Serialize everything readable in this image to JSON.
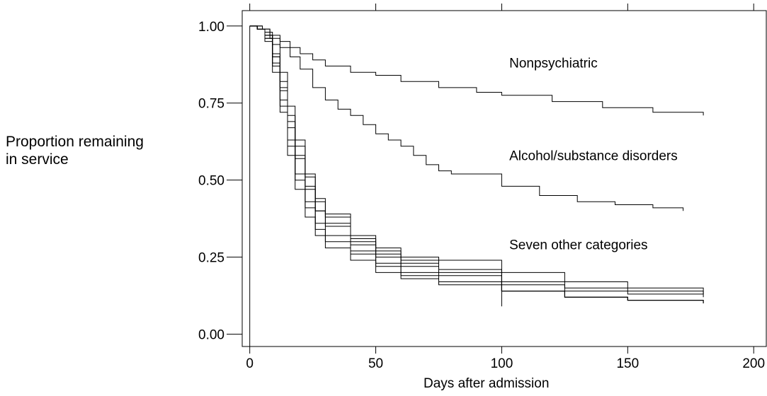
{
  "chart_data": {
    "type": "line",
    "xlabel": "Days after admission",
    "ylabel_line1": "Proportion remaining",
    "ylabel_line2": "in service",
    "xlim": [
      -3,
      205
    ],
    "ylim": [
      -0.04,
      1.05
    ],
    "xticks": [
      "0",
      "50",
      "100",
      "150",
      "200"
    ],
    "yticks": [
      "0.00",
      "0.25",
      "0.50",
      "0.75",
      "1.00"
    ],
    "xtick_values": [
      0,
      50,
      100,
      150,
      200
    ],
    "ytick_values": [
      0,
      0.25,
      0.5,
      0.75,
      1.0
    ],
    "grid": false,
    "annotations": [
      {
        "text": "Nonpsychiatric",
        "x": 103,
        "y": 0.865
      },
      {
        "text": "Alcohol/substance disorders",
        "x": 103,
        "y": 0.565
      },
      {
        "text": "Seven other categories",
        "x": 103,
        "y": 0.275
      }
    ],
    "series": [
      {
        "x": [
          0,
          5,
          8,
          12,
          16,
          20,
          25,
          30,
          40,
          50,
          60,
          75,
          90,
          100,
          120,
          140,
          160,
          180
        ],
        "y": [
          1.0,
          0.99,
          0.97,
          0.95,
          0.93,
          0.91,
          0.89,
          0.87,
          0.85,
          0.84,
          0.82,
          0.8,
          0.785,
          0.775,
          0.755,
          0.735,
          0.72,
          0.71
        ]
      },
      {
        "x": [
          0,
          5,
          8,
          12,
          16,
          20,
          25,
          30,
          35,
          40,
          45,
          50,
          55,
          60,
          65,
          70,
          75,
          80,
          100,
          115,
          130,
          145,
          160,
          172
        ],
        "y": [
          1.0,
          0.99,
          0.96,
          0.93,
          0.9,
          0.86,
          0.8,
          0.76,
          0.73,
          0.71,
          0.68,
          0.65,
          0.63,
          0.61,
          0.58,
          0.55,
          0.53,
          0.52,
          0.48,
          0.45,
          0.43,
          0.42,
          0.41,
          0.4
        ]
      },
      {
        "x": [
          0,
          3,
          6,
          9,
          12,
          15,
          18,
          22,
          26,
          30,
          40,
          50,
          60,
          75,
          100,
          125,
          150,
          180
        ],
        "y": [
          1.0,
          0.99,
          0.95,
          0.85,
          0.72,
          0.58,
          0.47,
          0.38,
          0.32,
          0.28,
          0.24,
          0.2,
          0.18,
          0.16,
          0.14,
          0.12,
          0.11,
          0.1
        ]
      },
      {
        "x": [
          0,
          3,
          6,
          9,
          12,
          15,
          18,
          22,
          26,
          30,
          40,
          50,
          60,
          75,
          100,
          125,
          150,
          180
        ],
        "y": [
          1.0,
          0.99,
          0.96,
          0.88,
          0.76,
          0.63,
          0.52,
          0.43,
          0.36,
          0.32,
          0.27,
          0.23,
          0.2,
          0.17,
          0.14,
          0.12,
          0.11,
          0.1
        ]
      },
      {
        "x": [
          0,
          3,
          6,
          9,
          12,
          15,
          18,
          22,
          26,
          30,
          40,
          50,
          60,
          75,
          100,
          125,
          150,
          180
        ],
        "y": [
          1.0,
          0.99,
          0.97,
          0.9,
          0.8,
          0.69,
          0.58,
          0.48,
          0.4,
          0.36,
          0.3,
          0.26,
          0.22,
          0.19,
          0.16,
          0.14,
          0.13,
          0.12
        ]
      },
      {
        "x": [
          0,
          3,
          6,
          9,
          12,
          15,
          18,
          22,
          26,
          30,
          40,
          50,
          60,
          75,
          100,
          125,
          150,
          180
        ],
        "y": [
          1.0,
          0.99,
          0.97,
          0.91,
          0.82,
          0.71,
          0.61,
          0.51,
          0.43,
          0.38,
          0.31,
          0.27,
          0.24,
          0.2,
          0.17,
          0.15,
          0.14,
          0.13
        ]
      },
      {
        "x": [
          0,
          3,
          6,
          9,
          12,
          15,
          18,
          22,
          26,
          30,
          40,
          50,
          60,
          75,
          100
        ],
        "y": [
          1.0,
          0.99,
          0.97,
          0.9,
          0.79,
          0.67,
          0.57,
          0.47,
          0.4,
          0.35,
          0.29,
          0.25,
          0.23,
          0.21,
          0.09
        ]
      },
      {
        "x": [
          0,
          3,
          6,
          9,
          12,
          15,
          18,
          22,
          26,
          30,
          40,
          50,
          60,
          75,
          100,
          125,
          150,
          180
        ],
        "y": [
          1.0,
          0.99,
          0.98,
          0.94,
          0.85,
          0.74,
          0.63,
          0.52,
          0.44,
          0.39,
          0.32,
          0.28,
          0.25,
          0.24,
          0.2,
          0.17,
          0.15,
          0.13
        ]
      },
      {
        "x": [
          0,
          3,
          6,
          9,
          12,
          15,
          18,
          22,
          26,
          30,
          40,
          50,
          60,
          75,
          100,
          125,
          150,
          180
        ],
        "y": [
          1.0,
          0.99,
          0.96,
          0.87,
          0.74,
          0.61,
          0.5,
          0.41,
          0.34,
          0.3,
          0.26,
          0.22,
          0.19,
          0.17,
          0.14,
          0.12,
          0.11,
          0.1
        ]
      }
    ]
  }
}
